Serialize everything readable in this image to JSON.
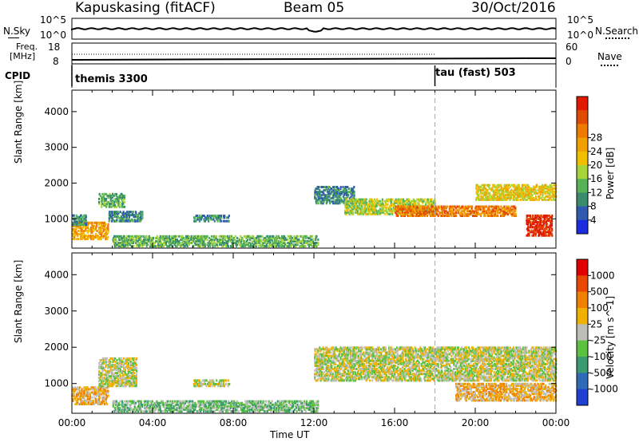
{
  "header": {
    "station": "Kapuskasing (fitACF)",
    "beam": "Beam 05",
    "date": "30/Oct/2016"
  },
  "top_panels": {
    "nsky": {
      "label": "N.Sky",
      "ticks": [
        "10^5",
        "10^0"
      ]
    },
    "nsearch": {
      "label": "N.Search",
      "ticks": [
        "10^5",
        "10^0"
      ]
    },
    "freq": {
      "label_line1": "Freq.",
      "label_line2": "[MHz]",
      "ticks": [
        "18",
        "8"
      ]
    },
    "nave": {
      "label": "Nave",
      "ticks": [
        "60",
        "0"
      ]
    },
    "cpid": {
      "label": "CPID",
      "modes": [
        {
          "name": "themis 3300",
          "start_hour": 0
        },
        {
          "name": "tau (fast) 503",
          "start_hour": 18
        }
      ]
    }
  },
  "chart_data": [
    {
      "type": "heatmap",
      "name": "power",
      "ylabel": "Slant Range [km]",
      "ylim": [
        180,
        4600
      ],
      "yticks": [
        1000,
        2000,
        3000,
        4000
      ],
      "xlim_hours": [
        0,
        24
      ],
      "colorbar": {
        "label": "Power [dB]",
        "ticks": [
          "4",
          "8",
          "12",
          "16",
          "20",
          "24",
          "28"
        ],
        "colors": [
          "#1b2be0",
          "#2f5ab0",
          "#3a8c6e",
          "#57b357",
          "#a6d43a",
          "#f0c000",
          "#f0a000",
          "#ee7a00",
          "#e04b00",
          "#e01a00"
        ]
      },
      "regions": [
        {
          "t0": 0.0,
          "t1": 1.8,
          "r0": 400,
          "r1": 900,
          "level": 6
        },
        {
          "t0": 0.0,
          "t1": 0.7,
          "r0": 800,
          "r1": 1100,
          "level": 2
        },
        {
          "t0": 1.3,
          "t1": 2.6,
          "r0": 1300,
          "r1": 1700,
          "level": 3
        },
        {
          "t0": 1.8,
          "t1": 3.5,
          "r0": 900,
          "r1": 1200,
          "level": 2
        },
        {
          "t0": 2.0,
          "t1": 12.2,
          "r0": 200,
          "r1": 520,
          "level": 3
        },
        {
          "t0": 6.0,
          "t1": 7.8,
          "r0": 900,
          "r1": 1100,
          "level": 2
        },
        {
          "t0": 12.0,
          "t1": 14.0,
          "r0": 1400,
          "r1": 1900,
          "level": 2
        },
        {
          "t0": 13.5,
          "t1": 18.0,
          "r0": 1100,
          "r1": 1550,
          "level": 4
        },
        {
          "t0": 16.0,
          "t1": 22.0,
          "r0": 1050,
          "r1": 1350,
          "level": 7
        },
        {
          "t0": 20.0,
          "t1": 24.0,
          "r0": 1500,
          "r1": 1950,
          "level": 5
        },
        {
          "t0": 22.5,
          "t1": 23.8,
          "r0": 500,
          "r1": 1100,
          "level": 9
        }
      ]
    },
    {
      "type": "heatmap",
      "name": "velocity",
      "ylabel": "Slant Range [km]",
      "ylim": [
        180,
        4600
      ],
      "yticks": [
        1000,
        2000,
        3000,
        4000
      ],
      "xlim_hours": [
        0,
        24
      ],
      "xticks": [
        "00:00",
        "04:00",
        "08:00",
        "12:00",
        "16:00",
        "20:00",
        "00:00"
      ],
      "xlabel": "Time UT",
      "colorbar": {
        "label": "Velocity [m s^-1]",
        "ticks": [
          "1000",
          "500",
          "100",
          "25",
          "-25",
          "-100",
          "-500",
          "-1000"
        ],
        "colors": [
          "#2040d0",
          "#2f6ab8",
          "#3a9a70",
          "#5cc040",
          "#bebeb8",
          "#f0b000",
          "#f08000",
          "#e84800",
          "#e00000"
        ]
      },
      "regions": [
        {
          "t0": 0.0,
          "t1": 1.8,
          "r0": 400,
          "r1": 900,
          "level": 5
        },
        {
          "t0": 1.3,
          "t1": 3.2,
          "r0": 900,
          "r1": 1700,
          "level": 4
        },
        {
          "t0": 2.0,
          "t1": 12.2,
          "r0": 200,
          "r1": 520,
          "level": 3
        },
        {
          "t0": 6.0,
          "t1": 7.8,
          "r0": 900,
          "r1": 1100,
          "level": 4
        },
        {
          "t0": 12.0,
          "t1": 24.0,
          "r0": 1050,
          "r1": 2000,
          "level": 4
        },
        {
          "t0": 19.0,
          "t1": 24.0,
          "r0": 500,
          "r1": 1000,
          "level": 5
        }
      ]
    }
  ]
}
